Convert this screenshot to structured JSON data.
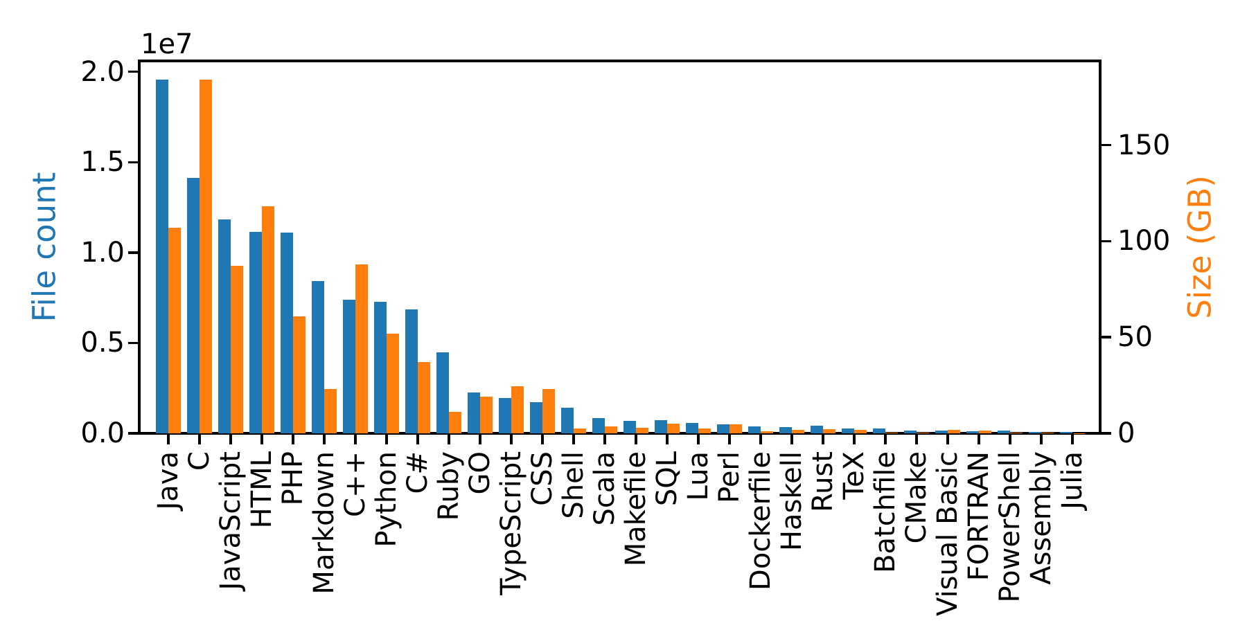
{
  "chart_data": {
    "type": "bar",
    "title": "",
    "xlabel": "",
    "ylabel": "File count",
    "ylabel_right": "Size (GB)",
    "categories": [
      "Java",
      "C",
      "JavaScript",
      "HTML",
      "PHP",
      "Markdown",
      "C++",
      "Python",
      "C#",
      "Ruby",
      "GO",
      "TypeScript",
      "CSS",
      "Shell",
      "Scala",
      "Makefile",
      "SQL",
      "Lua",
      "Perl",
      "Dockerfile",
      "Haskell",
      "Rust",
      "TeX",
      "Batchfile",
      "CMake",
      "Visual Basic",
      "FORTRAN",
      "PowerShell",
      "Assembly",
      "Julia"
    ],
    "series": [
      {
        "name": "File count",
        "axis": "left",
        "color": "#1f77b4",
        "values": [
          19550000,
          14120000,
          11830000,
          11140000,
          11090000,
          8430000,
          7380000,
          7270000,
          6850000,
          4490000,
          2270000,
          1950000,
          1740000,
          1410000,
          830000,
          700000,
          720000,
          590000,
          510000,
          380000,
          360000,
          410000,
          280000,
          250000,
          170000,
          140000,
          100000,
          150000,
          90000,
          60000
        ]
      },
      {
        "name": "Size (GB)",
        "axis": "right",
        "color": "#ff7f0e",
        "values": [
          107,
          184,
          87,
          118,
          61,
          23,
          88,
          52,
          37,
          11,
          19,
          24.5,
          23,
          2.7,
          3.6,
          2.8,
          5.2,
          2.4,
          4.6,
          1.2,
          1.8,
          2.3,
          1.9,
          0.4,
          0.3,
          1.8,
          1.3,
          0.4,
          0.3,
          0.15
        ]
      }
    ],
    "axes": {
      "left": {
        "label": "File count",
        "color": "#1f77b4",
        "offset_text": "1e7",
        "tick_labels": [
          "0.0",
          "0.5",
          "1.0",
          "1.5",
          "2.0"
        ],
        "tick_values": [
          0,
          5000000,
          10000000,
          15000000,
          20000000
        ],
        "range": [
          0,
          20600000
        ]
      },
      "right": {
        "label": "Size (GB)",
        "color": "#ff7f0e",
        "tick_labels": [
          "0",
          "50",
          "100",
          "150"
        ],
        "tick_values": [
          0,
          50,
          100,
          150
        ],
        "range": [
          0,
          193.8
        ]
      }
    },
    "grid": false,
    "legend": "none",
    "background": "#ffffff",
    "spine_color": "#000000"
  }
}
